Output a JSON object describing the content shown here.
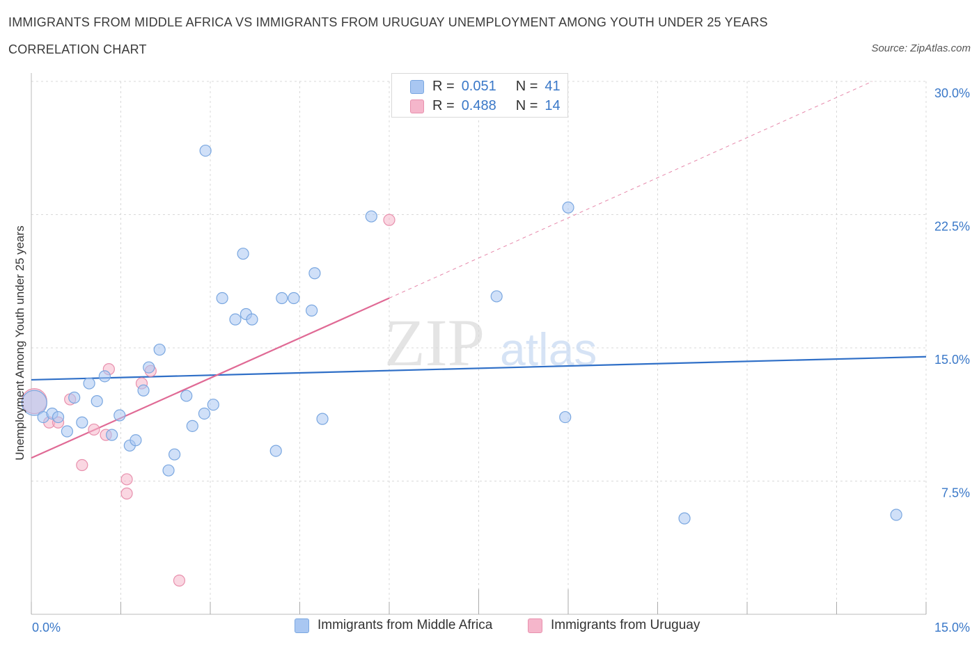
{
  "header": {
    "title": "IMMIGRANTS FROM MIDDLE AFRICA VS IMMIGRANTS FROM URUGUAY UNEMPLOYMENT AMONG YOUTH UNDER 25 YEARS",
    "subtitle": "CORRELATION CHART",
    "source": "Source: ZipAtlas.com"
  },
  "watermark": {
    "zip": "ZIP",
    "atlas": "atlas"
  },
  "legend_top": {
    "rows": [
      {
        "r_label": "R =",
        "r_value": "0.051",
        "n_label": "N =",
        "n_value": "41",
        "color": "#a9c7f2"
      },
      {
        "r_label": "R =",
        "r_value": "0.488",
        "n_label": "N =",
        "n_value": "14",
        "color": "#f5b6cb"
      }
    ]
  },
  "legend_bottom": [
    {
      "label": "Immigrants from Middle Africa",
      "color": "#a9c7f2"
    },
    {
      "label": "Immigrants from Uruguay",
      "color": "#f5b6cb"
    }
  ],
  "colors": {
    "blue_fill": "#a9c7f2",
    "blue_stroke": "#7aa7e0",
    "blue_line": "#2f6fc7",
    "pink_fill": "#f5b6cb",
    "pink_stroke": "#e890ad",
    "pink_line": "#e06a95",
    "grid": "#d8d8d8",
    "tick_text": "#3a78c8"
  },
  "chart_data": {
    "type": "scatter",
    "title": "IMMIGRANTS FROM MIDDLE AFRICA VS IMMIGRANTS FROM URUGUAY UNEMPLOYMENT AMONG YOUTH UNDER 25 YEARS",
    "xlabel": "",
    "ylabel": "Unemployment Among Youth under 25 years",
    "xlim": [
      0,
      15
    ],
    "ylim": [
      0,
      30
    ],
    "x_tick_labels": [
      {
        "value": 0,
        "label": "0.0%"
      },
      {
        "value": 15,
        "label": "15.0%"
      }
    ],
    "y_tick_labels": [
      {
        "value": 7.5,
        "label": "7.5%"
      },
      {
        "value": 15,
        "label": "15.0%"
      },
      {
        "value": 22.5,
        "label": "22.5%"
      },
      {
        "value": 30,
        "label": "30.0%"
      }
    ],
    "grid": true,
    "legend_position": "bottom",
    "series": [
      {
        "name": "Immigrants from Middle Africa",
        "color": "#a9c7f2",
        "points": [
          {
            "x": 0.05,
            "y": 11.9,
            "big": true
          },
          {
            "x": 0.2,
            "y": 11.1
          },
          {
            "x": 0.35,
            "y": 11.3
          },
          {
            "x": 0.45,
            "y": 11.1
          },
          {
            "x": 0.6,
            "y": 10.3
          },
          {
            "x": 0.72,
            "y": 12.2
          },
          {
            "x": 0.85,
            "y": 10.8
          },
          {
            "x": 0.97,
            "y": 13.0
          },
          {
            "x": 1.1,
            "y": 12.0
          },
          {
            "x": 1.23,
            "y": 13.4
          },
          {
            "x": 1.35,
            "y": 10.1
          },
          {
            "x": 1.48,
            "y": 11.2
          },
          {
            "x": 1.65,
            "y": 9.5
          },
          {
            "x": 1.75,
            "y": 9.8
          },
          {
            "x": 1.88,
            "y": 12.6
          },
          {
            "x": 1.97,
            "y": 13.9
          },
          {
            "x": 2.15,
            "y": 14.9
          },
          {
            "x": 2.3,
            "y": 8.1
          },
          {
            "x": 2.4,
            "y": 9.0
          },
          {
            "x": 2.6,
            "y": 12.3
          },
          {
            "x": 2.7,
            "y": 10.6
          },
          {
            "x": 2.9,
            "y": 11.3
          },
          {
            "x": 2.92,
            "y": 26.1
          },
          {
            "x": 3.05,
            "y": 11.8
          },
          {
            "x": 3.2,
            "y": 17.8
          },
          {
            "x": 3.42,
            "y": 16.6
          },
          {
            "x": 3.55,
            "y": 20.3
          },
          {
            "x": 3.6,
            "y": 16.9
          },
          {
            "x": 3.7,
            "y": 16.6
          },
          {
            "x": 4.1,
            "y": 9.2
          },
          {
            "x": 4.2,
            "y": 17.8
          },
          {
            "x": 4.4,
            "y": 17.8
          },
          {
            "x": 4.7,
            "y": 17.1
          },
          {
            "x": 4.75,
            "y": 19.2
          },
          {
            "x": 4.88,
            "y": 11.0
          },
          {
            "x": 5.7,
            "y": 22.4
          },
          {
            "x": 7.8,
            "y": 17.9
          },
          {
            "x": 8.95,
            "y": 11.1
          },
          {
            "x": 9.0,
            "y": 22.9
          },
          {
            "x": 10.95,
            "y": 5.4
          },
          {
            "x": 14.5,
            "y": 5.6
          }
        ],
        "trend": {
          "x": [
            0,
            15
          ],
          "y": [
            13.2,
            14.5
          ],
          "style": "solid"
        }
      },
      {
        "name": "Immigrants from Uruguay",
        "color": "#f5b6cb",
        "points": [
          {
            "x": 0.05,
            "y": 12.0,
            "big": true
          },
          {
            "x": 0.3,
            "y": 10.8
          },
          {
            "x": 0.45,
            "y": 10.8
          },
          {
            "x": 0.65,
            "y": 12.1
          },
          {
            "x": 0.85,
            "y": 8.4
          },
          {
            "x": 1.05,
            "y": 10.4
          },
          {
            "x": 1.25,
            "y": 10.1
          },
          {
            "x": 1.3,
            "y": 13.8
          },
          {
            "x": 1.6,
            "y": 6.8
          },
          {
            "x": 1.6,
            "y": 7.6
          },
          {
            "x": 1.85,
            "y": 13.0
          },
          {
            "x": 2.0,
            "y": 13.7
          },
          {
            "x": 2.48,
            "y": 1.9
          },
          {
            "x": 6.0,
            "y": 22.2
          }
        ],
        "trend": {
          "x": [
            0,
            6
          ],
          "y": [
            8.8,
            17.8
          ],
          "style": "solid",
          "extension": {
            "x": [
              6,
              14.1
            ],
            "y": [
              17.8,
              30.0
            ],
            "style": "dashed"
          }
        }
      }
    ]
  }
}
